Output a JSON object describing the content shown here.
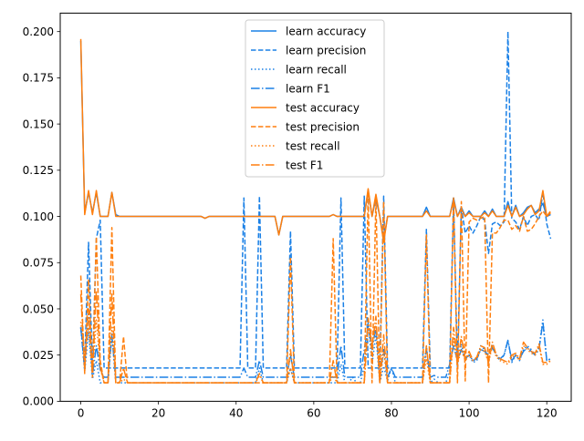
{
  "chart_data": {
    "type": "line",
    "title": "",
    "xlabel": "",
    "ylabel": "",
    "xlim": [
      -5.3,
      126.3
    ],
    "ylim": [
      0,
      0.21
    ],
    "x_ticks": [
      0,
      20,
      40,
      60,
      80,
      100,
      120
    ],
    "y_ticks": [
      0.0,
      0.025,
      0.05,
      0.075,
      0.1,
      0.125,
      0.15,
      0.175,
      0.2
    ],
    "y_tick_labels": [
      "0.000",
      "0.025",
      "0.050",
      "0.075",
      "0.100",
      "0.125",
      "0.150",
      "0.175",
      "0.200"
    ],
    "grid": false,
    "legend_position": "top-center",
    "x": [
      0,
      1,
      2,
      3,
      4,
      5,
      6,
      7,
      8,
      9,
      10,
      11,
      12,
      13,
      14,
      15,
      16,
      17,
      18,
      19,
      20,
      21,
      22,
      23,
      24,
      25,
      26,
      27,
      28,
      29,
      30,
      31,
      32,
      33,
      34,
      35,
      36,
      37,
      38,
      39,
      40,
      41,
      42,
      43,
      44,
      45,
      46,
      47,
      48,
      49,
      50,
      51,
      52,
      53,
      54,
      55,
      56,
      57,
      58,
      59,
      60,
      61,
      62,
      63,
      64,
      65,
      66,
      67,
      68,
      69,
      70,
      71,
      72,
      73,
      74,
      75,
      76,
      77,
      78,
      79,
      80,
      81,
      82,
      83,
      84,
      85,
      86,
      87,
      88,
      89,
      90,
      91,
      92,
      93,
      94,
      95,
      96,
      97,
      98,
      99,
      100,
      101,
      102,
      103,
      104,
      105,
      106,
      107,
      108,
      109,
      110,
      111,
      112,
      113,
      114,
      115,
      116,
      117,
      118,
      119,
      120,
      121
    ],
    "series": [
      {
        "name": "learn accuracy",
        "color": "#1a80e6",
        "dash": "solid",
        "values": [
          0.195,
          0.102,
          0.113,
          0.102,
          0.113,
          0.1,
          0.1,
          0.1,
          0.113,
          0.101,
          0.1,
          0.1,
          0.1,
          0.1,
          0.1,
          0.1,
          0.1,
          0.1,
          0.1,
          0.1,
          0.1,
          0.1,
          0.1,
          0.1,
          0.1,
          0.1,
          0.1,
          0.1,
          0.1,
          0.1,
          0.1,
          0.1,
          0.099,
          0.1,
          0.1,
          0.1,
          0.1,
          0.1,
          0.1,
          0.1,
          0.1,
          0.1,
          0.1,
          0.1,
          0.1,
          0.1,
          0.1,
          0.1,
          0.1,
          0.1,
          0.1,
          0.09,
          0.1,
          0.1,
          0.1,
          0.1,
          0.1,
          0.1,
          0.1,
          0.1,
          0.1,
          0.1,
          0.1,
          0.1,
          0.1,
          0.101,
          0.1,
          0.1,
          0.1,
          0.1,
          0.1,
          0.1,
          0.1,
          0.1,
          0.114,
          0.1,
          0.11,
          0.1,
          0.087,
          0.1,
          0.1,
          0.1,
          0.1,
          0.1,
          0.1,
          0.1,
          0.1,
          0.1,
          0.1,
          0.105,
          0.1,
          0.1,
          0.1,
          0.1,
          0.1,
          0.1,
          0.11,
          0.1,
          0.105,
          0.1,
          0.103,
          0.1,
          0.1,
          0.1,
          0.103,
          0.1,
          0.104,
          0.1,
          0.1,
          0.1,
          0.108,
          0.1,
          0.106,
          0.1,
          0.102,
          0.105,
          0.106,
          0.102,
          0.104,
          0.107,
          0.1,
          0.101
        ]
      },
      {
        "name": "learn precision",
        "color": "#1a80e6",
        "dash": "dashed",
        "values": [
          0.04,
          0.02,
          0.086,
          0.018,
          0.088,
          0.098,
          0.018,
          0.018,
          0.018,
          0.018,
          0.018,
          0.018,
          0.018,
          0.018,
          0.018,
          0.018,
          0.018,
          0.018,
          0.018,
          0.018,
          0.018,
          0.018,
          0.018,
          0.018,
          0.018,
          0.018,
          0.018,
          0.018,
          0.018,
          0.018,
          0.018,
          0.018,
          0.018,
          0.018,
          0.018,
          0.018,
          0.018,
          0.018,
          0.018,
          0.018,
          0.018,
          0.018,
          0.11,
          0.018,
          0.018,
          0.018,
          0.111,
          0.018,
          0.018,
          0.018,
          0.018,
          0.018,
          0.018,
          0.018,
          0.092,
          0.018,
          0.018,
          0.018,
          0.018,
          0.018,
          0.018,
          0.018,
          0.018,
          0.018,
          0.018,
          0.018,
          0.018,
          0.11,
          0.018,
          0.018,
          0.018,
          0.018,
          0.018,
          0.111,
          0.018,
          0.018,
          0.018,
          0.018,
          0.111,
          0.018,
          0.018,
          0.018,
          0.018,
          0.018,
          0.018,
          0.018,
          0.018,
          0.018,
          0.018,
          0.093,
          0.018,
          0.018,
          0.018,
          0.018,
          0.018,
          0.018,
          0.11,
          0.018,
          0.105,
          0.091,
          0.095,
          0.091,
          0.095,
          0.1,
          0.098,
          0.08,
          0.096,
          0.097,
          0.095,
          0.097,
          0.2,
          0.099,
          0.097,
          0.093,
          0.1,
          0.095,
          0.1,
          0.101,
          0.098,
          0.113,
          0.096,
          0.088
        ]
      },
      {
        "name": "learn recall",
        "color": "#1a80e6",
        "dash": "dotted",
        "values": [
          0.04,
          0.016,
          0.038,
          0.012,
          0.022,
          0.01,
          0.01,
          0.01,
          0.037,
          0.01,
          0.01,
          0.01,
          0.01,
          0.01,
          0.01,
          0.01,
          0.01,
          0.01,
          0.01,
          0.01,
          0.01,
          0.01,
          0.01,
          0.01,
          0.01,
          0.01,
          0.01,
          0.01,
          0.01,
          0.01,
          0.01,
          0.01,
          0.01,
          0.01,
          0.01,
          0.01,
          0.01,
          0.01,
          0.01,
          0.01,
          0.01,
          0.01,
          0.01,
          0.01,
          0.01,
          0.01,
          0.018,
          0.01,
          0.01,
          0.01,
          0.01,
          0.01,
          0.01,
          0.01,
          0.018,
          0.01,
          0.01,
          0.01,
          0.01,
          0.01,
          0.01,
          0.01,
          0.01,
          0.01,
          0.01,
          0.01,
          0.01,
          0.02,
          0.01,
          0.01,
          0.013,
          0.01,
          0.01,
          0.019,
          0.043,
          0.02,
          0.036,
          0.01,
          0.019,
          0.011,
          0.018,
          0.01,
          0.01,
          0.01,
          0.01,
          0.01,
          0.01,
          0.01,
          0.01,
          0.03,
          0.01,
          0.012,
          0.01,
          0.01,
          0.01,
          0.016,
          0.034,
          0.02,
          0.031,
          0.022,
          0.025,
          0.021,
          0.022,
          0.03,
          0.028,
          0.025,
          0.031,
          0.025,
          0.022,
          0.025,
          0.033,
          0.021,
          0.025,
          0.022,
          0.028,
          0.03,
          0.028,
          0.025,
          0.029,
          0.044,
          0.022,
          0.023
        ]
      },
      {
        "name": "learn F1",
        "color": "#1a80e6",
        "dash": "dashdot",
        "values": [
          0.04,
          0.017,
          0.05,
          0.014,
          0.03,
          0.017,
          0.013,
          0.013,
          0.035,
          0.013,
          0.013,
          0.013,
          0.013,
          0.013,
          0.013,
          0.013,
          0.013,
          0.013,
          0.013,
          0.013,
          0.013,
          0.013,
          0.013,
          0.013,
          0.013,
          0.013,
          0.013,
          0.013,
          0.013,
          0.013,
          0.013,
          0.013,
          0.013,
          0.013,
          0.013,
          0.013,
          0.013,
          0.013,
          0.013,
          0.013,
          0.013,
          0.013,
          0.018,
          0.013,
          0.013,
          0.013,
          0.022,
          0.013,
          0.013,
          0.013,
          0.013,
          0.013,
          0.013,
          0.013,
          0.025,
          0.013,
          0.013,
          0.013,
          0.013,
          0.013,
          0.013,
          0.013,
          0.013,
          0.013,
          0.013,
          0.013,
          0.013,
          0.03,
          0.013,
          0.013,
          0.013,
          0.013,
          0.013,
          0.028,
          0.041,
          0.028,
          0.04,
          0.013,
          0.028,
          0.013,
          0.018,
          0.013,
          0.013,
          0.013,
          0.013,
          0.013,
          0.013,
          0.013,
          0.013,
          0.028,
          0.013,
          0.014,
          0.013,
          0.013,
          0.013,
          0.02,
          0.03,
          0.022,
          0.028,
          0.023,
          0.025,
          0.022,
          0.023,
          0.028,
          0.027,
          0.025,
          0.029,
          0.025,
          0.023,
          0.025,
          0.033,
          0.022,
          0.025,
          0.023,
          0.027,
          0.029,
          0.027,
          0.025,
          0.028,
          0.043,
          0.022,
          0.023
        ]
      },
      {
        "name": "test accuracy",
        "color": "#ff7f0e",
        "dash": "solid",
        "values": [
          0.196,
          0.101,
          0.114,
          0.101,
          0.114,
          0.1,
          0.1,
          0.1,
          0.113,
          0.1,
          0.1,
          0.1,
          0.1,
          0.1,
          0.1,
          0.1,
          0.1,
          0.1,
          0.1,
          0.1,
          0.1,
          0.1,
          0.1,
          0.1,
          0.1,
          0.1,
          0.1,
          0.1,
          0.1,
          0.1,
          0.1,
          0.1,
          0.099,
          0.1,
          0.1,
          0.1,
          0.1,
          0.1,
          0.1,
          0.1,
          0.1,
          0.1,
          0.1,
          0.1,
          0.1,
          0.1,
          0.1,
          0.1,
          0.1,
          0.1,
          0.1,
          0.09,
          0.1,
          0.1,
          0.1,
          0.1,
          0.1,
          0.1,
          0.1,
          0.1,
          0.1,
          0.1,
          0.1,
          0.1,
          0.1,
          0.101,
          0.1,
          0.1,
          0.1,
          0.1,
          0.1,
          0.1,
          0.1,
          0.1,
          0.115,
          0.1,
          0.112,
          0.1,
          0.086,
          0.1,
          0.1,
          0.1,
          0.1,
          0.1,
          0.1,
          0.1,
          0.1,
          0.1,
          0.1,
          0.103,
          0.1,
          0.1,
          0.1,
          0.1,
          0.1,
          0.1,
          0.109,
          0.1,
          0.104,
          0.1,
          0.102,
          0.1,
          0.1,
          0.1,
          0.102,
          0.1,
          0.103,
          0.1,
          0.1,
          0.1,
          0.106,
          0.1,
          0.105,
          0.1,
          0.101,
          0.104,
          0.106,
          0.101,
          0.103,
          0.114,
          0.1,
          0.102
        ]
      },
      {
        "name": "test precision",
        "color": "#ff7f0e",
        "dash": "dashed",
        "values": [
          0.068,
          0.015,
          0.066,
          0.013,
          0.089,
          0.022,
          0.01,
          0.01,
          0.094,
          0.01,
          0.01,
          0.035,
          0.01,
          0.01,
          0.01,
          0.01,
          0.01,
          0.01,
          0.01,
          0.01,
          0.01,
          0.01,
          0.01,
          0.01,
          0.01,
          0.01,
          0.01,
          0.01,
          0.01,
          0.01,
          0.01,
          0.01,
          0.01,
          0.01,
          0.01,
          0.01,
          0.01,
          0.01,
          0.01,
          0.01,
          0.01,
          0.01,
          0.01,
          0.01,
          0.01,
          0.01,
          0.01,
          0.01,
          0.01,
          0.01,
          0.01,
          0.01,
          0.01,
          0.01,
          0.078,
          0.01,
          0.01,
          0.01,
          0.01,
          0.01,
          0.01,
          0.01,
          0.01,
          0.01,
          0.01,
          0.088,
          0.01,
          0.01,
          0.01,
          0.01,
          0.01,
          0.01,
          0.01,
          0.01,
          0.112,
          0.01,
          0.11,
          0.01,
          0.108,
          0.01,
          0.01,
          0.01,
          0.01,
          0.01,
          0.01,
          0.01,
          0.01,
          0.01,
          0.01,
          0.09,
          0.01,
          0.01,
          0.01,
          0.01,
          0.01,
          0.01,
          0.11,
          0.01,
          0.108,
          0.011,
          0.097,
          0.099,
          0.098,
          0.099,
          0.1,
          0.01,
          0.091,
          0.091,
          0.094,
          0.098,
          0.098,
          0.093,
          0.095,
          0.092,
          0.1,
          0.092,
          0.093,
          0.096,
          0.1,
          0.103,
          0.1,
          0.103
        ]
      },
      {
        "name": "test recall",
        "color": "#ff7f0e",
        "dash": "dotted",
        "values": [
          0.043,
          0.025,
          0.04,
          0.015,
          0.044,
          0.018,
          0.01,
          0.01,
          0.04,
          0.01,
          0.01,
          0.012,
          0.01,
          0.01,
          0.01,
          0.01,
          0.01,
          0.01,
          0.01,
          0.01,
          0.01,
          0.01,
          0.01,
          0.01,
          0.01,
          0.01,
          0.01,
          0.01,
          0.01,
          0.01,
          0.01,
          0.01,
          0.01,
          0.01,
          0.01,
          0.01,
          0.01,
          0.01,
          0.01,
          0.01,
          0.01,
          0.01,
          0.01,
          0.01,
          0.01,
          0.01,
          0.014,
          0.01,
          0.01,
          0.01,
          0.01,
          0.01,
          0.01,
          0.01,
          0.018,
          0.01,
          0.01,
          0.01,
          0.01,
          0.01,
          0.01,
          0.01,
          0.01,
          0.01,
          0.01,
          0.014,
          0.01,
          0.01,
          0.01,
          0.01,
          0.01,
          0.01,
          0.01,
          0.01,
          0.04,
          0.03,
          0.041,
          0.01,
          0.027,
          0.01,
          0.01,
          0.01,
          0.01,
          0.01,
          0.01,
          0.01,
          0.01,
          0.01,
          0.01,
          0.023,
          0.01,
          0.01,
          0.01,
          0.01,
          0.01,
          0.01,
          0.034,
          0.02,
          0.028,
          0.022,
          0.025,
          0.022,
          0.023,
          0.028,
          0.027,
          0.021,
          0.03,
          0.024,
          0.022,
          0.021,
          0.02,
          0.024,
          0.025,
          0.022,
          0.03,
          0.028,
          0.026,
          0.025,
          0.03,
          0.02,
          0.02,
          0.022
        ]
      },
      {
        "name": "test F1",
        "color": "#ff7f0e",
        "dash": "dashdot",
        "values": [
          0.058,
          0.018,
          0.05,
          0.014,
          0.06,
          0.019,
          0.01,
          0.01,
          0.058,
          0.01,
          0.01,
          0.018,
          0.01,
          0.01,
          0.01,
          0.01,
          0.01,
          0.01,
          0.01,
          0.01,
          0.01,
          0.01,
          0.01,
          0.01,
          0.01,
          0.01,
          0.01,
          0.01,
          0.01,
          0.01,
          0.01,
          0.01,
          0.01,
          0.01,
          0.01,
          0.01,
          0.01,
          0.01,
          0.01,
          0.01,
          0.01,
          0.01,
          0.01,
          0.01,
          0.01,
          0.01,
          0.015,
          0.01,
          0.01,
          0.01,
          0.01,
          0.01,
          0.01,
          0.01,
          0.028,
          0.01,
          0.01,
          0.01,
          0.01,
          0.01,
          0.01,
          0.01,
          0.01,
          0.01,
          0.01,
          0.022,
          0.01,
          0.01,
          0.01,
          0.01,
          0.01,
          0.01,
          0.01,
          0.01,
          0.045,
          0.03,
          0.046,
          0.01,
          0.036,
          0.01,
          0.01,
          0.01,
          0.01,
          0.01,
          0.01,
          0.01,
          0.01,
          0.01,
          0.01,
          0.03,
          0.01,
          0.01,
          0.01,
          0.01,
          0.01,
          0.01,
          0.04,
          0.02,
          0.035,
          0.022,
          0.027,
          0.022,
          0.024,
          0.03,
          0.029,
          0.021,
          0.032,
          0.025,
          0.023,
          0.022,
          0.021,
          0.025,
          0.026,
          0.023,
          0.032,
          0.029,
          0.027,
          0.026,
          0.031,
          0.021,
          0.021,
          0.022
        ]
      }
    ]
  }
}
